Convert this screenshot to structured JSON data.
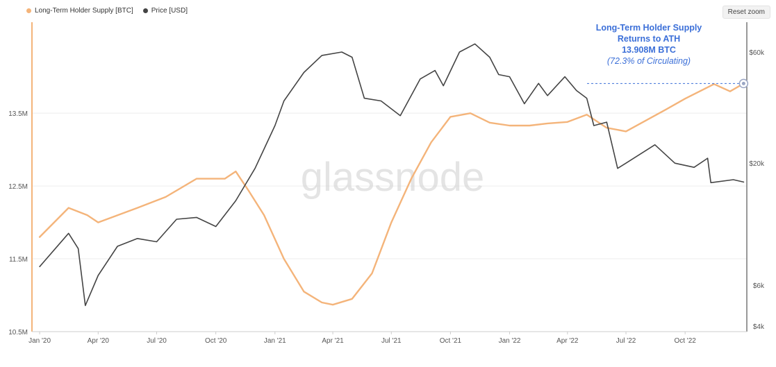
{
  "toolbar": {
    "reset_zoom_label": "Reset zoom"
  },
  "legend": [
    {
      "label": "Long-Term Holder Supply [BTC]",
      "color": "#f4b47a"
    },
    {
      "label": "Price [USD]",
      "color": "#444444"
    }
  ],
  "annotation": {
    "line1": "Long-Term Holder Supply",
    "line2": "Returns to ATH",
    "line3": "13.908M BTC",
    "line4": "(72.3% of Circulating)"
  },
  "watermark": "glassnode",
  "chart_data": {
    "type": "line",
    "x_ticks": [
      "Jan '20",
      "Apr '20",
      "Jul '20",
      "Oct '20",
      "Jan '21",
      "Apr '21",
      "Jul '21",
      "Oct '21",
      "Jan '22",
      "Apr '22",
      "Jul '22",
      "Oct '22"
    ],
    "y_left_ticks": [
      "13.5M",
      "12.5M",
      "11.5M",
      "10.5M"
    ],
    "y_left_tick_values": [
      13.5,
      12.5,
      11.5,
      10.5
    ],
    "y_right_ticks": [
      "$60k",
      "$20k",
      "$6k",
      "$4k"
    ],
    "y_right_tick_values": [
      60000,
      20000,
      6000,
      4000
    ],
    "y_right_scale": "log",
    "grid": true,
    "legend_position": "top-left",
    "x_range": [
      "2019-12-20",
      "2023-01-05"
    ],
    "y_left_range": [
      10.5,
      14.75
    ],
    "series": [
      {
        "name": "Long-Term Holder Supply [BTC]",
        "axis": "left",
        "color": "#f4b47a",
        "unit": "M BTC",
        "points": [
          [
            "2020-01-01",
            11.8
          ],
          [
            "2020-02-15",
            12.2
          ],
          [
            "2020-03-15",
            12.1
          ],
          [
            "2020-04-01",
            12.0
          ],
          [
            "2020-06-01",
            12.2
          ],
          [
            "2020-07-15",
            12.35
          ],
          [
            "2020-09-01",
            12.6
          ],
          [
            "2020-10-15",
            12.6
          ],
          [
            "2020-11-01",
            12.7
          ],
          [
            "2020-11-20",
            12.45
          ],
          [
            "2020-12-15",
            12.1
          ],
          [
            "2021-01-15",
            11.5
          ],
          [
            "2021-02-15",
            11.05
          ],
          [
            "2021-03-15",
            10.9
          ],
          [
            "2021-04-01",
            10.87
          ],
          [
            "2021-05-01",
            10.95
          ],
          [
            "2021-06-01",
            11.3
          ],
          [
            "2021-07-01",
            12.0
          ],
          [
            "2021-08-01",
            12.6
          ],
          [
            "2021-09-01",
            13.1
          ],
          [
            "2021-10-01",
            13.45
          ],
          [
            "2021-11-01",
            13.5
          ],
          [
            "2021-12-01",
            13.37
          ],
          [
            "2022-01-01",
            13.33
          ],
          [
            "2022-02-01",
            13.33
          ],
          [
            "2022-03-01",
            13.36
          ],
          [
            "2022-04-01",
            13.38
          ],
          [
            "2022-05-01",
            13.48
          ],
          [
            "2022-06-01",
            13.3
          ],
          [
            "2022-07-01",
            13.25
          ],
          [
            "2022-08-01",
            13.4
          ],
          [
            "2022-09-01",
            13.55
          ],
          [
            "2022-10-01",
            13.7
          ],
          [
            "2022-11-15",
            13.9
          ],
          [
            "2022-12-10",
            13.8
          ],
          [
            "2022-12-31",
            13.908
          ]
        ]
      },
      {
        "name": "Price [USD]",
        "axis": "right",
        "color": "#444444",
        "unit": "USD",
        "points": [
          [
            "2020-01-01",
            7200
          ],
          [
            "2020-02-15",
            10000
          ],
          [
            "2020-03-01",
            8600
          ],
          [
            "2020-03-12",
            4900
          ],
          [
            "2020-04-01",
            6600
          ],
          [
            "2020-05-01",
            8800
          ],
          [
            "2020-06-01",
            9500
          ],
          [
            "2020-07-01",
            9200
          ],
          [
            "2020-08-01",
            11500
          ],
          [
            "2020-09-01",
            11700
          ],
          [
            "2020-10-01",
            10700
          ],
          [
            "2020-11-01",
            13800
          ],
          [
            "2020-12-01",
            19000
          ],
          [
            "2021-01-01",
            29000
          ],
          [
            "2021-01-15",
            37000
          ],
          [
            "2021-02-15",
            49000
          ],
          [
            "2021-03-15",
            58000
          ],
          [
            "2021-04-15",
            60000
          ],
          [
            "2021-05-01",
            57000
          ],
          [
            "2021-05-20",
            38000
          ],
          [
            "2021-06-15",
            37000
          ],
          [
            "2021-07-15",
            32000
          ],
          [
            "2021-08-15",
            46000
          ],
          [
            "2021-09-07",
            50000
          ],
          [
            "2021-09-20",
            43000
          ],
          [
            "2021-10-15",
            60000
          ],
          [
            "2021-11-08",
            65000
          ],
          [
            "2021-12-01",
            57000
          ],
          [
            "2021-12-15",
            48000
          ],
          [
            "2022-01-01",
            47000
          ],
          [
            "2022-01-24",
            36000
          ],
          [
            "2022-02-15",
            44000
          ],
          [
            "2022-03-01",
            39000
          ],
          [
            "2022-03-28",
            47000
          ],
          [
            "2022-04-15",
            41000
          ],
          [
            "2022-05-01",
            38000
          ],
          [
            "2022-05-12",
            29000
          ],
          [
            "2022-06-01",
            30000
          ],
          [
            "2022-06-18",
            19000
          ],
          [
            "2022-07-01",
            20000
          ],
          [
            "2022-08-15",
            24000
          ],
          [
            "2022-09-15",
            20000
          ],
          [
            "2022-10-15",
            19200
          ],
          [
            "2022-11-05",
            21000
          ],
          [
            "2022-11-10",
            16500
          ],
          [
            "2022-12-15",
            17000
          ],
          [
            "2022-12-31",
            16600
          ]
        ]
      }
    ]
  }
}
